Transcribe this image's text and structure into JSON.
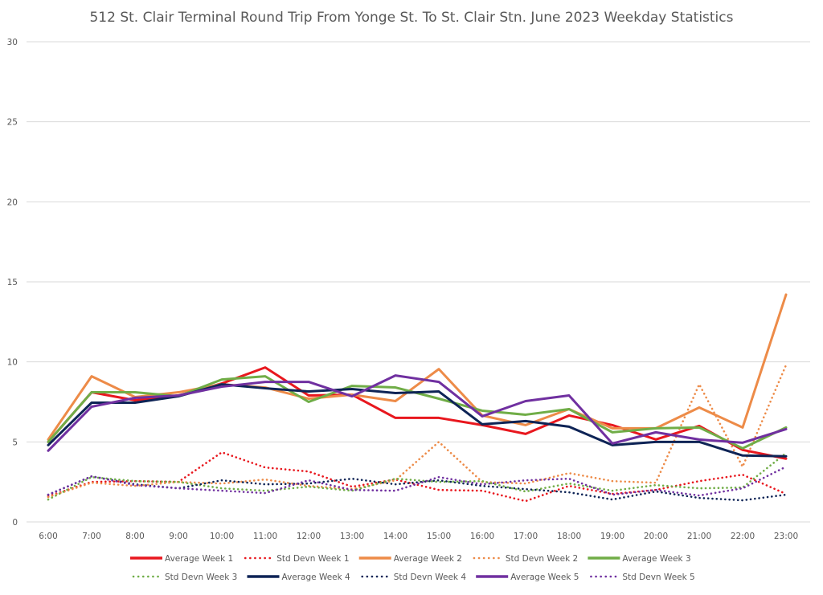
{
  "chart_data": {
    "type": "line",
    "title": "512 St. Clair Terminal Round Trip From Yonge St. To St. Clair Stn. June 2023 Weekday Statistics",
    "xlabel": "",
    "ylabel": "",
    "ylim": [
      0,
      30
    ],
    "yticks": [
      "0",
      "5",
      "10",
      "15",
      "20",
      "25",
      "30"
    ],
    "grid": true,
    "legend_position": "bottom",
    "categories": [
      "6:00",
      "7:00",
      "8:00",
      "9:00",
      "10:00",
      "11:00",
      "12:00",
      "13:00",
      "14:00",
      "15:00",
      "16:00",
      "17:00",
      "18:00",
      "19:00",
      "20:00",
      "21:00",
      "22:00",
      "23:00"
    ],
    "series": [
      {
        "name": "Average Week 1",
        "color": "#E8171E",
        "style": "solid",
        "values": [
          5.0,
          8.1,
          7.6,
          7.9,
          8.65,
          9.65,
          7.9,
          7.95,
          6.5,
          6.5,
          6.05,
          5.5,
          6.65,
          6.05,
          5.15,
          6.0,
          4.5,
          3.95
        ]
      },
      {
        "name": "Std Devn Week 1",
        "color": "#E8171E",
        "style": "dotted",
        "values": [
          1.6,
          2.5,
          2.55,
          2.5,
          4.35,
          3.4,
          3.15,
          2.2,
          2.65,
          2.0,
          1.95,
          1.3,
          2.25,
          1.75,
          2.0,
          2.55,
          2.95,
          1.75
        ]
      },
      {
        "name": "Average Week 2",
        "color": "#ED8B48",
        "style": "solid",
        "values": [
          5.15,
          9.1,
          7.8,
          8.1,
          8.6,
          8.4,
          7.7,
          7.95,
          7.55,
          9.55,
          6.65,
          6.05,
          7.05,
          5.85,
          5.85,
          7.15,
          5.9,
          14.2
        ]
      },
      {
        "name": "Std Devn Week 2",
        "color": "#ED8B48",
        "style": "dotted",
        "values": [
          1.55,
          2.45,
          2.25,
          2.5,
          2.4,
          2.65,
          2.25,
          2.05,
          2.6,
          5.0,
          2.5,
          2.4,
          3.05,
          2.55,
          2.45,
          8.6,
          3.45,
          9.8
        ]
      },
      {
        "name": "Average Week 3",
        "color": "#70AD47",
        "style": "solid",
        "values": [
          5.0,
          8.1,
          8.1,
          7.85,
          8.9,
          9.1,
          7.5,
          8.5,
          8.4,
          7.7,
          6.95,
          6.7,
          7.05,
          5.6,
          5.85,
          5.9,
          4.6,
          5.9
        ]
      },
      {
        "name": "Std Devn Week 3",
        "color": "#70AD47",
        "style": "dotted",
        "values": [
          1.4,
          2.8,
          2.55,
          2.5,
          2.1,
          1.95,
          2.2,
          1.95,
          2.7,
          2.5,
          2.55,
          1.9,
          2.4,
          1.95,
          2.3,
          2.1,
          2.15,
          4.3
        ]
      },
      {
        "name": "Average Week 4",
        "color": "#0E2456",
        "style": "solid",
        "values": [
          4.8,
          7.45,
          7.45,
          7.85,
          8.6,
          8.35,
          8.15,
          8.3,
          8.05,
          8.15,
          6.1,
          6.3,
          5.95,
          4.8,
          5.0,
          5.0,
          4.15,
          4.1
        ]
      },
      {
        "name": "Std Devn Week 4",
        "color": "#0E2456",
        "style": "dotted",
        "values": [
          1.7,
          2.85,
          2.35,
          2.1,
          2.6,
          2.35,
          2.4,
          2.7,
          2.35,
          2.6,
          2.25,
          2.05,
          1.85,
          1.4,
          1.9,
          1.5,
          1.35,
          1.7
        ]
      },
      {
        "name": "Average Week 5",
        "color": "#7030A0",
        "style": "solid",
        "values": [
          4.45,
          7.2,
          7.75,
          7.9,
          8.45,
          8.75,
          8.75,
          7.85,
          9.15,
          8.75,
          6.6,
          7.55,
          7.9,
          4.9,
          5.6,
          5.15,
          4.95,
          5.8
        ]
      },
      {
        "name": "Std Devn Week 5",
        "color": "#7030A0",
        "style": "dotted",
        "values": [
          1.7,
          2.85,
          2.3,
          2.1,
          1.95,
          1.8,
          2.6,
          2.0,
          1.95,
          2.8,
          2.35,
          2.6,
          2.7,
          1.7,
          2.0,
          1.65,
          2.1,
          3.45
        ]
      }
    ]
  }
}
